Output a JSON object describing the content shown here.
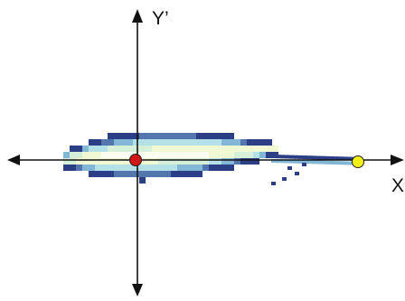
{
  "axes": {
    "x_label": "X",
    "y_label": "Y’"
  },
  "markers": {
    "origin": {
      "fill": "#d01818",
      "stroke": "#202020"
    },
    "end_point": {
      "fill": "#f2ef18",
      "stroke": "#202020"
    }
  },
  "colors": {
    "axis": "#111111",
    "blob_palette": [
      "#fbfdf0",
      "#f0f8d4",
      "#d6efd8",
      "#b4e0e8",
      "#82b8d6",
      "#5476ae",
      "#2c3e86"
    ]
  }
}
